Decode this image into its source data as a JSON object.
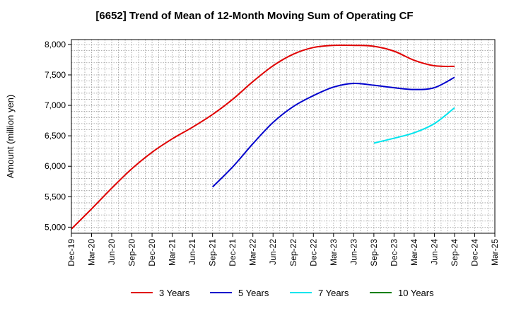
{
  "chart_data": {
    "type": "line",
    "title": "[6652]  Trend of Mean of 12-Month Moving Sum of Operating CF",
    "xlabel": "",
    "ylabel": "Amount (million yen)",
    "ylim": [
      4900,
      8080
    ],
    "yticks": [
      5000,
      5500,
      6000,
      6500,
      7000,
      7500,
      8000
    ],
    "ytick_labels": [
      "5,000",
      "5,500",
      "6,000",
      "6,500",
      "7,000",
      "7,500",
      "8,000"
    ],
    "xticks": [
      "Dec-19",
      "Mar-20",
      "Jun-20",
      "Sep-20",
      "Dec-20",
      "Mar-21",
      "Jun-21",
      "Sep-21",
      "Dec-21",
      "Mar-22",
      "Jun-22",
      "Sep-22",
      "Dec-22",
      "Mar-23",
      "Jun-23",
      "Sep-23",
      "Dec-23",
      "Mar-24",
      "Jun-24",
      "Sep-24",
      "Dec-24",
      "Mar-25"
    ],
    "grid": true,
    "legend_position": "bottom",
    "series": [
      {
        "name": "3 Years",
        "color": "#e00000",
        "x": [
          "Dec-19",
          "Mar-20",
          "Jun-20",
          "Sep-20",
          "Dec-20",
          "Mar-21",
          "Jun-21",
          "Sep-21",
          "Dec-21",
          "Mar-22",
          "Jun-22",
          "Sep-22",
          "Dec-22",
          "Mar-23",
          "Jun-23",
          "Sep-23",
          "Dec-23",
          "Mar-24",
          "Jun-24",
          "Sep-24"
        ],
        "values": [
          4970,
          5300,
          5640,
          5960,
          6230,
          6450,
          6640,
          6850,
          7100,
          7390,
          7650,
          7840,
          7950,
          7985,
          7985,
          7970,
          7890,
          7740,
          7650,
          7640
        ]
      },
      {
        "name": "5 Years",
        "color": "#0000cc",
        "x": [
          "Sep-21",
          "Dec-21",
          "Mar-22",
          "Jun-22",
          "Sep-22",
          "Dec-22",
          "Mar-23",
          "Jun-23",
          "Sep-23",
          "Dec-23",
          "Mar-24",
          "Jun-24",
          "Sep-24"
        ],
        "values": [
          5660,
          5990,
          6370,
          6720,
          6980,
          7160,
          7300,
          7360,
          7330,
          7290,
          7260,
          7290,
          7460
        ]
      },
      {
        "name": "7 Years",
        "color": "#00e5ee",
        "x": [
          "Sep-23",
          "Dec-23",
          "Mar-24",
          "Jun-24",
          "Sep-24"
        ],
        "values": [
          6380,
          6460,
          6550,
          6700,
          6960
        ]
      },
      {
        "name": "10 Years",
        "color": "#008000",
        "x": [],
        "values": []
      }
    ]
  }
}
